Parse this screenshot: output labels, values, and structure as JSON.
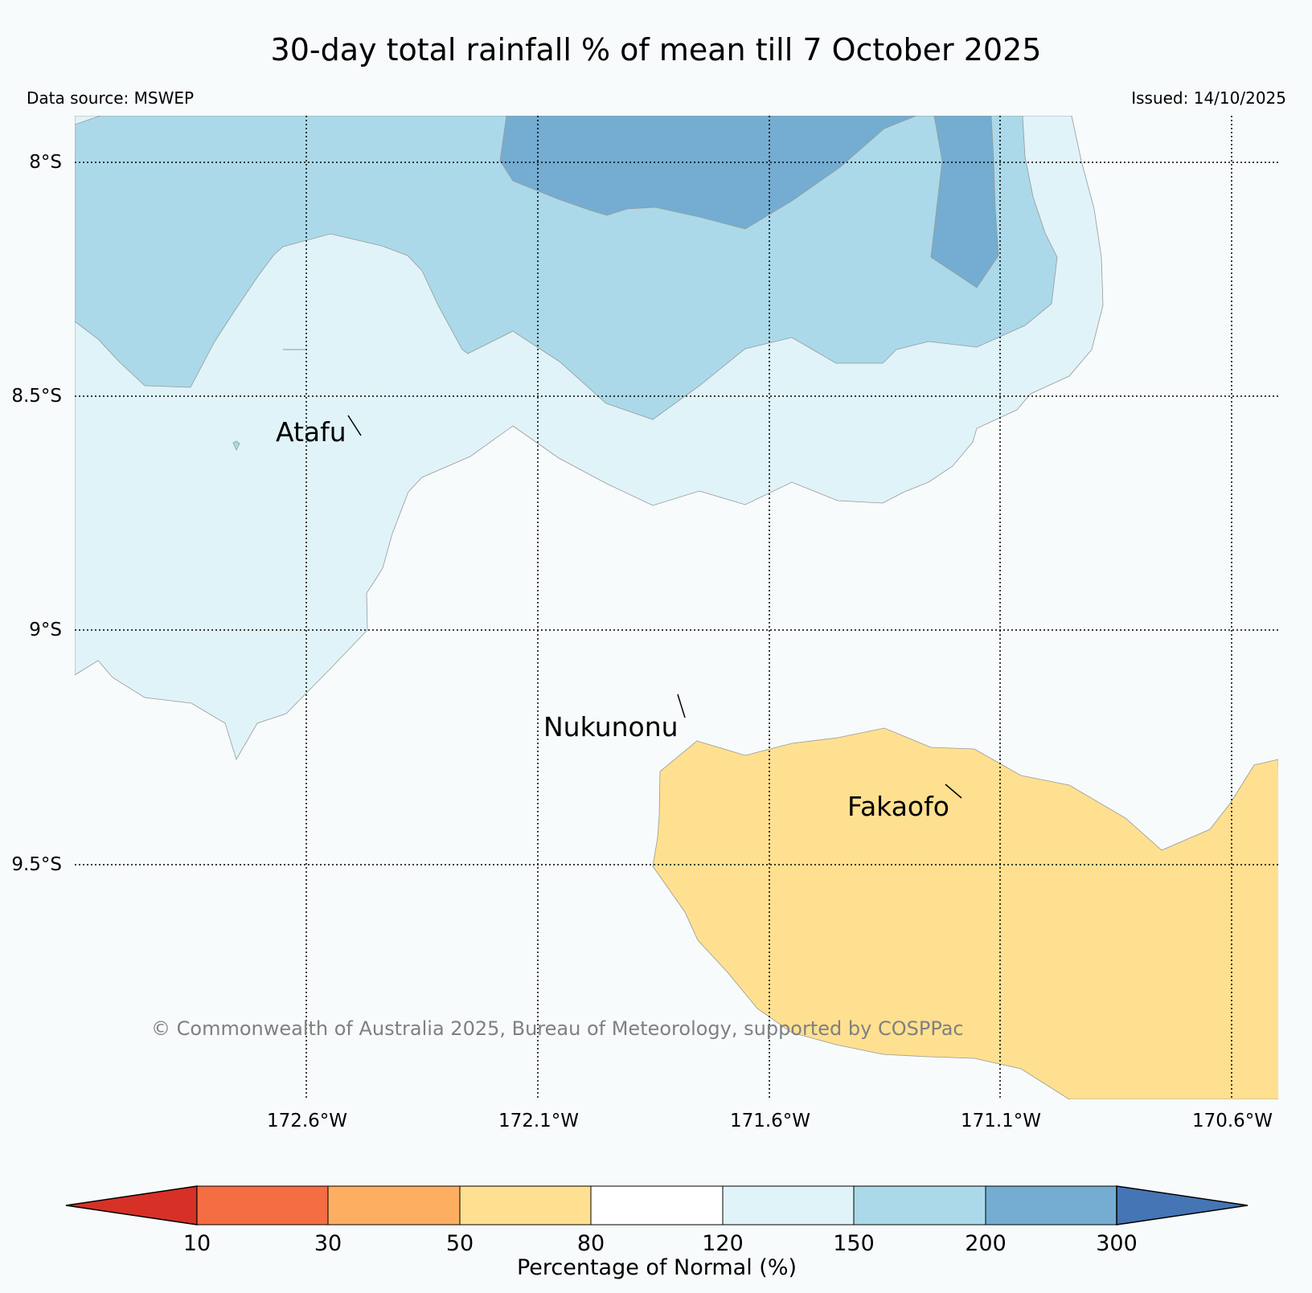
{
  "title": "30-day total rainfall % of mean till 7 October 2025",
  "data_source": "Data source: MSWEP",
  "issued": "Issued: 14/10/2025",
  "credit": "© Commonwealth of Australia 2025, Bureau of Meteorology, supported by COSPPac",
  "map": {
    "lat_ticks": [
      "8°S",
      "8.5°S",
      "9°S",
      "9.5°S"
    ],
    "lon_ticks": [
      "172.6°W",
      "172.1°W",
      "171.6°W",
      "171.1°W",
      "170.6°W"
    ],
    "places": [
      {
        "name": "Atafu"
      },
      {
        "name": "Nukunonu"
      },
      {
        "name": "Fakaofo"
      }
    ]
  },
  "legend": {
    "label": "Percentage of Normal (%)",
    "ticks": [
      "10",
      "30",
      "50",
      "80",
      "120",
      "150",
      "200",
      "300"
    ],
    "colors": {
      "below_10": "#d73027",
      "10_30": "#f46d43",
      "30_50": "#fdae61",
      "50_80": "#fee090",
      "80_120": "#ffffff",
      "120_150": "#e0f3f8",
      "150_200": "#abd9e9",
      "200_300": "#74add1",
      "above_300": "#4575b4"
    }
  }
}
